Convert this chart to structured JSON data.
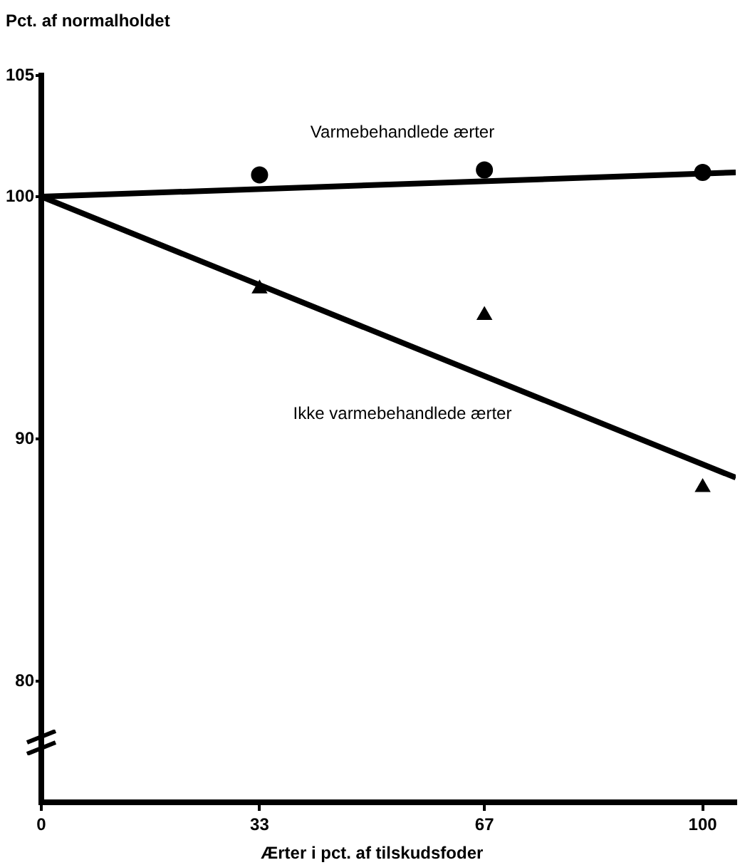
{
  "chart_data": {
    "type": "scatter",
    "xlabel": "Ærter i pct. af tilskudsfoder",
    "ylabel": "Pct. af normalholdet",
    "xlim": [
      0,
      105
    ],
    "xticks": [
      0,
      33,
      67,
      100
    ],
    "ylim": [
      75,
      105
    ],
    "yticks": [
      80,
      90,
      100,
      105
    ],
    "grid": false,
    "legend": false,
    "series": [
      {
        "color": "#000000",
        "marker": "circle",
        "x": [
          33,
          67,
          100
        ],
        "values": [
          100.9,
          101.1,
          101.0
        ]
      },
      {
        "color": "#000000",
        "marker": "triangle",
        "x": [
          33,
          67,
          100
        ],
        "values": [
          96.2,
          95.1,
          88.0
        ]
      },
      {
        "type": "line",
        "name": "Varmebehandlede ærter",
        "color": "#000000",
        "marker": "none",
        "x": [
          0,
          105
        ],
        "values": [
          100,
          101.0
        ]
      },
      {
        "type": "line",
        "name": "Ikke varmebehandlede ærter",
        "color": "#000000",
        "marker": "none",
        "x": [
          0,
          105
        ],
        "values": [
          100,
          88.4
        ]
      }
    ]
  }
}
